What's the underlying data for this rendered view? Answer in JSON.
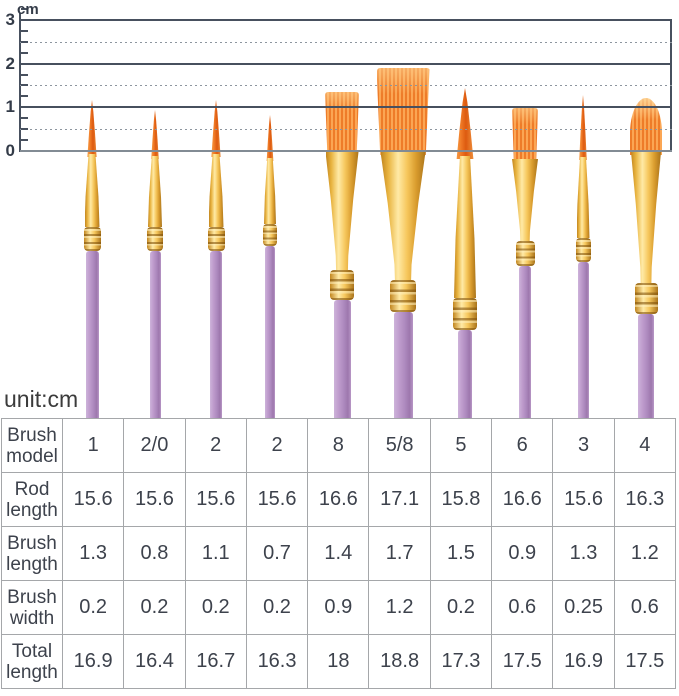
{
  "unit_note": "unit:cm",
  "ruler": {
    "unit_label": "cm",
    "axis_tick_labels": [
      "3",
      "2",
      "1",
      "0"
    ],
    "axis_levels_cm": [
      3,
      2,
      1,
      0
    ],
    "solid_levels_cm": [
      3,
      2,
      1
    ],
    "dotted_levels_cm": [
      2.5,
      1.5,
      0.5
    ],
    "minor_tick_levels_cm": [
      3.25,
      2.75,
      2.5,
      2.25,
      1.75,
      1.5,
      1.25,
      0.75,
      0.5,
      0.25
    ],
    "range_cm": [
      0,
      3
    ]
  },
  "colors": {
    "bristle_orange": "#ee7c29",
    "ferrule_gold": "#f6c75c",
    "handle_purple": "#b794c7",
    "ruler_line_dark": "#47505e",
    "zero_line_gray": "#828b94",
    "table_border_gray": "#a5a7aa",
    "text_dark": "#3d424c"
  },
  "brushes": [
    {
      "model": "1",
      "bristle_shape": "round-pointed"
    },
    {
      "model": "2/0",
      "bristle_shape": "round-pointed"
    },
    {
      "model": "2",
      "bristle_shape": "round-pointed"
    },
    {
      "model": "2",
      "bristle_shape": "round-pointed"
    },
    {
      "model": "8",
      "bristle_shape": "flat"
    },
    {
      "model": "5/8",
      "bristle_shape": "flat-wash"
    },
    {
      "model": "5",
      "bristle_shape": "round-pointed"
    },
    {
      "model": "6",
      "bristle_shape": "flat"
    },
    {
      "model": "3",
      "bristle_shape": "round-pointed"
    },
    {
      "model": "4",
      "bristle_shape": "filbert"
    }
  ],
  "table": {
    "rows": [
      {
        "label": "Brush\nmodel",
        "values": [
          "1",
          "2/0",
          "2",
          "2",
          "8",
          "5/8",
          "5",
          "6",
          "3",
          "4"
        ]
      },
      {
        "label": "Rod\nlength",
        "values": [
          "15.6",
          "15.6",
          "15.6",
          "15.6",
          "16.6",
          "17.1",
          "15.8",
          "16.6",
          "15.6",
          "16.3"
        ]
      },
      {
        "label": "Brush\nlength",
        "values": [
          "1.3",
          "0.8",
          "1.1",
          "0.7",
          "1.4",
          "1.7",
          "1.5",
          "0.9",
          "1.3",
          "1.2"
        ]
      },
      {
        "label": "Brush\nwidth",
        "values": [
          "0.2",
          "0.2",
          "0.2",
          "0.2",
          "0.9",
          "1.2",
          "0.2",
          "0.6",
          "0.25",
          "0.6"
        ]
      },
      {
        "label": "Total\nlength",
        "values": [
          "16.9",
          "16.4",
          "16.7",
          "16.3",
          "18",
          "18.8",
          "17.3",
          "17.5",
          "16.9",
          "17.5"
        ]
      }
    ]
  },
  "chart_data": {
    "type": "table",
    "title": "Paint brush set measurements (cm ruler 0-3 plus size table)",
    "ruler_range_cm": [
      0,
      3
    ],
    "categories_brush_model": [
      "1",
      "2/0",
      "2",
      "2",
      "8",
      "5/8",
      "5",
      "6",
      "3",
      "4"
    ],
    "series": [
      {
        "name": "Rod length",
        "values": [
          15.6,
          15.6,
          15.6,
          15.6,
          16.6,
          17.1,
          15.8,
          16.6,
          15.6,
          16.3
        ]
      },
      {
        "name": "Brush length",
        "values": [
          1.3,
          0.8,
          1.1,
          0.7,
          1.4,
          1.7,
          1.5,
          0.9,
          1.3,
          1.2
        ]
      },
      {
        "name": "Brush width",
        "values": [
          0.2,
          0.2,
          0.2,
          0.2,
          0.9,
          1.2,
          0.2,
          0.6,
          0.25,
          0.6
        ]
      },
      {
        "name": "Total length",
        "values": [
          16.9,
          16.4,
          16.7,
          16.3,
          18,
          18.8,
          17.3,
          17.5,
          16.9,
          17.5
        ]
      }
    ]
  }
}
